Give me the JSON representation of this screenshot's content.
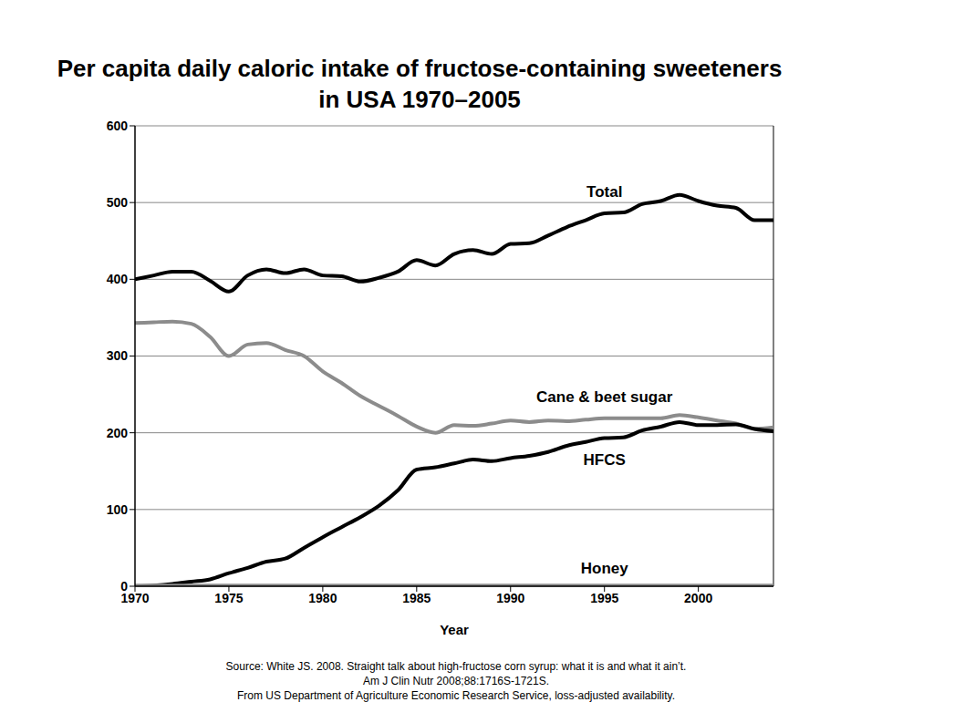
{
  "chart_data": {
    "type": "line",
    "title": "Per capita daily caloric intake of fructose-containing sweeteners in USA 1970–2005",
    "xlabel": "Year",
    "source": [
      "Source: White JS. 2008. Straight talk about high-fructose corn syrup: what it is and what it ain’t.",
      "Am J Clin Nutr 2008;88:1716S-1721S.",
      "From US Department of Agriculture Economic Research Service, loss-adjusted availability."
    ],
    "x": [
      1970,
      1971,
      1972,
      1973,
      1974,
      1975,
      1976,
      1977,
      1978,
      1979,
      1980,
      1981,
      1982,
      1983,
      1984,
      1985,
      1986,
      1987,
      1988,
      1989,
      1990,
      1991,
      1992,
      1993,
      1994,
      1995,
      1996,
      1997,
      1998,
      1999,
      2000,
      2001,
      2002,
      2003,
      2004
    ],
    "series": [
      {
        "name": "Total",
        "color": "#000000",
        "values": [
          400,
          405,
          410,
          410,
          398,
          384,
          405,
          413,
          408,
          413,
          405,
          404,
          397,
          402,
          410,
          425,
          418,
          433,
          438,
          433,
          446,
          447,
          457,
          468,
          477,
          486,
          487,
          498,
          502,
          510,
          502,
          496,
          493,
          477,
          477
        ]
      },
      {
        "name": "Cane & beet sugar",
        "color": "#8c8c8c",
        "values": [
          343,
          344,
          345,
          342,
          325,
          300,
          315,
          317,
          308,
          300,
          280,
          265,
          248,
          235,
          222,
          208,
          200,
          210,
          209,
          212,
          216,
          214,
          216,
          215,
          217,
          219,
          219,
          219,
          219,
          223,
          220,
          216,
          212,
          205,
          207
        ]
      },
      {
        "name": "HFCS",
        "color": "#000000",
        "values": [
          0,
          1,
          3,
          6,
          9,
          17,
          24,
          32,
          36,
          50,
          64,
          77,
          90,
          105,
          125,
          152,
          155,
          160,
          165,
          163,
          167,
          170,
          175,
          183,
          188,
          193,
          194,
          203,
          208,
          214,
          210,
          210,
          211,
          205,
          202
        ]
      },
      {
        "name": "Honey",
        "color": "#8c8c8c",
        "values": [
          1,
          1,
          1,
          1,
          1,
          1,
          1,
          1,
          1,
          1,
          1,
          1,
          1,
          1,
          1,
          1,
          1,
          1,
          1,
          1,
          1,
          1,
          1,
          1,
          1,
          1,
          1,
          1,
          1,
          1,
          1,
          1,
          1,
          1,
          1
        ]
      }
    ],
    "xlim": [
      1970,
      2004
    ],
    "xticks": [
      1970,
      1975,
      1980,
      1985,
      1990,
      1995,
      2000
    ],
    "ylim": [
      0,
      600
    ],
    "yticks": [
      0,
      100,
      200,
      300,
      400,
      500,
      600
    ],
    "grid": true
  }
}
